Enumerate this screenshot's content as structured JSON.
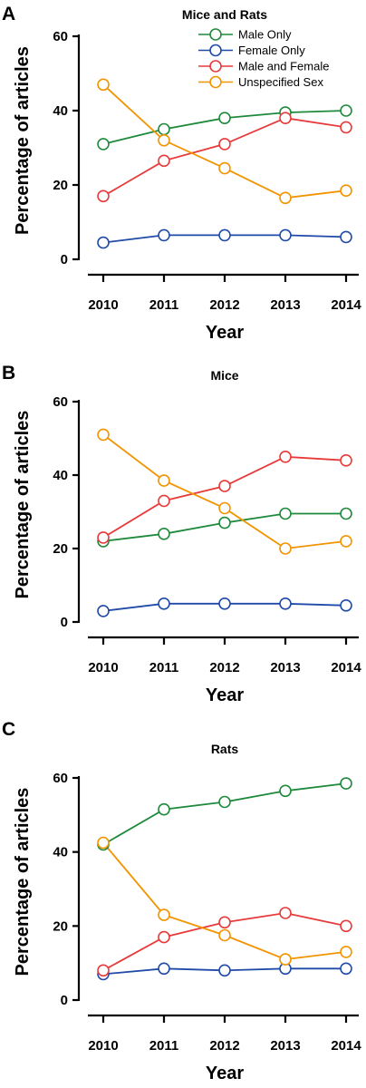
{
  "chart_data": [
    {
      "type": "line",
      "panel_letter": "A",
      "title": "Mice and Rats",
      "xlabel": "Year",
      "ylabel": "Percentage of articles",
      "categories": [
        "2010",
        "2011",
        "2012",
        "2013",
        "2014"
      ],
      "yticks": [
        "0",
        "20",
        "40",
        "60"
      ],
      "ylim": [
        0,
        60
      ],
      "grid": false,
      "legend": "top-right",
      "series": [
        {
          "name": "Male Only",
          "color": "#1f8a3c",
          "values": [
            31,
            35,
            38,
            39.5,
            40
          ]
        },
        {
          "name": "Female Only",
          "color": "#1f4aa8",
          "values": [
            4.5,
            6.5,
            6.5,
            6.5,
            6
          ]
        },
        {
          "name": "Male and Female",
          "color": "#e83a3a",
          "values": [
            17,
            26.5,
            31,
            38,
            35.5
          ]
        },
        {
          "name": "Unspecified Sex",
          "color": "#f29400",
          "values": [
            47,
            32,
            24.5,
            16.5,
            18.5
          ]
        }
      ]
    },
    {
      "type": "line",
      "panel_letter": "B",
      "title": "Mice",
      "xlabel": "Year",
      "ylabel": "Percentage of articles",
      "categories": [
        "2010",
        "2011",
        "2012",
        "2013",
        "2014"
      ],
      "yticks": [
        "0",
        "20",
        "40",
        "60"
      ],
      "ylim": [
        0,
        60
      ],
      "grid": false,
      "series": [
        {
          "name": "Male Only",
          "color": "#1f8a3c",
          "values": [
            22,
            24,
            27,
            29.5,
            29.5
          ]
        },
        {
          "name": "Female Only",
          "color": "#1f4aa8",
          "values": [
            3,
            5,
            5,
            5,
            4.5
          ]
        },
        {
          "name": "Male and Female",
          "color": "#e83a3a",
          "values": [
            23,
            33,
            37,
            45,
            44
          ]
        },
        {
          "name": "Unspecified Sex",
          "color": "#f29400",
          "values": [
            51,
            38.5,
            31,
            20,
            22
          ]
        }
      ]
    },
    {
      "type": "line",
      "panel_letter": "C",
      "title": "Rats",
      "xlabel": "Year",
      "ylabel": "Percentage of articles",
      "categories": [
        "2010",
        "2011",
        "2012",
        "2013",
        "2014"
      ],
      "yticks": [
        "0",
        "20",
        "40",
        "60"
      ],
      "ylim": [
        0,
        60
      ],
      "grid": false,
      "series": [
        {
          "name": "Male Only",
          "color": "#1f8a3c",
          "values": [
            42,
            51.5,
            53.5,
            56.5,
            58.5
          ]
        },
        {
          "name": "Female Only",
          "color": "#1f4aa8",
          "values": [
            7,
            8.5,
            8,
            8.5,
            8.5
          ]
        },
        {
          "name": "Male and Female",
          "color": "#e83a3a",
          "values": [
            8,
            17,
            21,
            23.5,
            20
          ]
        },
        {
          "name": "Unspecified Sex",
          "color": "#f29400",
          "values": [
            42.5,
            23,
            17.5,
            11,
            13
          ]
        }
      ]
    }
  ]
}
